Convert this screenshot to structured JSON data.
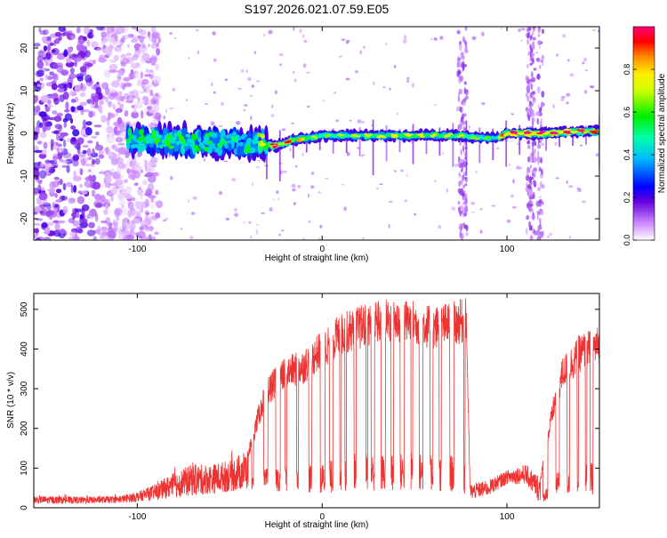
{
  "title": "S197.2026.021.07.59.E05",
  "chart_data": [
    {
      "type": "heatmap",
      "title": "S197.2026.021.07.59.E05",
      "xlabel": "Height of straight line (km)",
      "ylabel": "Frequency (Hz)",
      "xlim": [
        -156,
        150
      ],
      "ylim": [
        -25,
        25
      ],
      "xticks": [
        -100,
        0,
        100
      ],
      "yticks": [
        -20,
        -10,
        0,
        10,
        20
      ],
      "colorbar": {
        "label": "Normalized spectral amplitude",
        "range": [
          0,
          1
        ],
        "ticks": [
          0.0,
          0.2,
          0.4,
          0.6,
          0.8
        ],
        "tick_labels": [
          "0.0",
          "0.2",
          "0.4",
          "0.6",
          "0.8"
        ],
        "colormap": "rainbow (violet to red)"
      },
      "ridge": {
        "x": [
          -105,
          -90,
          -75,
          -60,
          -45,
          -35,
          -25,
          -15,
          -5,
          0,
          20,
          40,
          60,
          75,
          85,
          95,
          100,
          120,
          140,
          150
        ],
        "freq": [
          -1.5,
          -1.5,
          -2,
          -2,
          -2.5,
          -2,
          -3,
          -1.5,
          -1,
          -0.5,
          -0.5,
          -0.5,
          -0.5,
          -0.5,
          -1,
          -1,
          0,
          0,
          0.5,
          0.5
        ],
        "amplitude": [
          0.35,
          0.4,
          0.4,
          0.35,
          0.3,
          0.4,
          0.85,
          0.7,
          0.5,
          0.45,
          0.5,
          0.55,
          0.55,
          0.5,
          0.45,
          0.4,
          0.95,
          0.9,
          0.85,
          0.7
        ]
      },
      "noise_region_x": [
        -156,
        -100
      ]
    },
    {
      "type": "line",
      "xlabel": "Height of straight line (km)",
      "ylabel": "SNR (10 * v/v)",
      "xlim": [
        -156,
        150
      ],
      "ylim": [
        0,
        540
      ],
      "xticks": [
        -100,
        0,
        100
      ],
      "yticks": [
        0,
        100,
        200,
        300,
        400,
        500
      ],
      "line_color": "#ee3333",
      "envelope": {
        "x": [
          -156,
          -130,
          -110,
          -100,
          -90,
          -80,
          -70,
          -60,
          -50,
          -40,
          -35,
          -30,
          -20,
          -10,
          0,
          10,
          20,
          30,
          40,
          50,
          60,
          70,
          78,
          80,
          90,
          100,
          110,
          118,
          125,
          130,
          140,
          150
        ],
        "upper": [
          30,
          28,
          30,
          40,
          60,
          90,
          110,
          110,
          120,
          150,
          250,
          330,
          380,
          400,
          450,
          490,
          510,
          525,
          530,
          525,
          510,
          520,
          530,
          60,
          70,
          95,
          110,
          80,
          280,
          380,
          440,
          460
        ],
        "lower": [
          10,
          10,
          12,
          15,
          20,
          25,
          30,
          35,
          40,
          45,
          40,
          40,
          40,
          40,
          30,
          40,
          50,
          40,
          40,
          45,
          40,
          40,
          30,
          20,
          30,
          60,
          60,
          10,
          30,
          30,
          30,
          35
        ]
      }
    }
  ]
}
